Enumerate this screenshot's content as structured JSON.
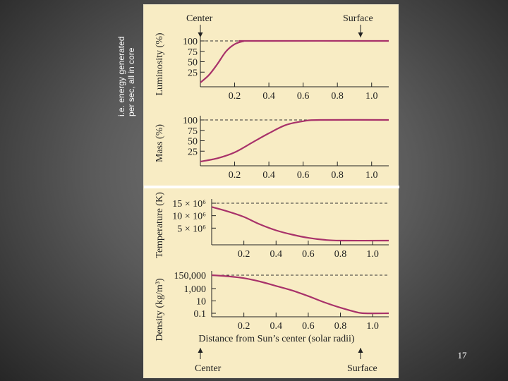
{
  "side_note": {
    "line1": "i.e. energy generated",
    "line2": "per sec, all in core"
  },
  "slide_number": "17",
  "figure": {
    "top_marker_center": "Center",
    "top_marker_surface": "Surface",
    "bottom_marker_center": "Center",
    "bottom_marker_surface": "Surface",
    "xlabel": "Distance from Sun’s center (solar radii)"
  },
  "colors": {
    "curve": "#a8326a",
    "panel_bg": "#f8ecc4",
    "panel_divider": "#ffffff",
    "axis": "#222222"
  },
  "chart_data": [
    {
      "type": "line",
      "ylabel": "Luminosity (%)",
      "xlim": [
        0,
        1.1
      ],
      "x_ticks": [
        "0.2",
        "0.4",
        "0.6",
        "0.8",
        "1.0"
      ],
      "y_ticks": [
        "100",
        "75",
        "50",
        "25"
      ],
      "ylim": [
        0,
        100
      ],
      "reference_line": 100,
      "x": [
        0,
        0.05,
        0.1,
        0.15,
        0.2,
        0.25,
        0.3,
        1.1
      ],
      "y": [
        0,
        18,
        45,
        75,
        92,
        99,
        100,
        100
      ]
    },
    {
      "type": "line",
      "ylabel": "Mass (%)",
      "xlim": [
        0,
        1.1
      ],
      "x_ticks": [
        "0.2",
        "0.4",
        "0.6",
        "0.8",
        "1.0"
      ],
      "y_ticks": [
        "100",
        "75",
        "50",
        "25"
      ],
      "ylim": [
        0,
        100
      ],
      "reference_line": 100,
      "x": [
        0,
        0.1,
        0.2,
        0.3,
        0.4,
        0.5,
        0.6,
        0.7,
        1.1
      ],
      "y": [
        0,
        8,
        22,
        45,
        68,
        88,
        97,
        100,
        100
      ]
    },
    {
      "type": "line",
      "ylabel": "Temperature (K)",
      "xlim": [
        0,
        1.1
      ],
      "x_ticks": [
        "0.2",
        "0.4",
        "0.6",
        "0.8",
        "1.0"
      ],
      "y_ticks": [
        "15 × 10⁶",
        "10 × 10⁶",
        "5 × 10⁶"
      ],
      "ylim": [
        0,
        15000000
      ],
      "reference_line": 15000000,
      "x": [
        0,
        0.1,
        0.2,
        0.3,
        0.4,
        0.5,
        0.6,
        0.7,
        0.8,
        1.1
      ],
      "y": [
        13500000,
        11700000,
        9500000,
        6500000,
        4100000,
        2400000,
        1100000,
        300000,
        0,
        0
      ]
    },
    {
      "type": "line",
      "ylabel": "Density (kg/m³)",
      "xlim": [
        0,
        1.1
      ],
      "x_ticks": [
        "0.2",
        "0.4",
        "0.6",
        "0.8",
        "1.0"
      ],
      "y_ticks": [
        "150,000",
        "1,000",
        "10",
        "0.1"
      ],
      "y_scale": "log",
      "reference_line": 150000,
      "x": [
        0,
        0.1,
        0.2,
        0.3,
        0.4,
        0.5,
        0.6,
        0.7,
        0.8,
        0.9,
        0.95,
        1.1
      ],
      "y": [
        150000,
        98000,
        50000,
        14000,
        2700,
        500,
        60,
        6,
        0.8,
        0.15,
        0.1,
        0.1
      ]
    }
  ]
}
